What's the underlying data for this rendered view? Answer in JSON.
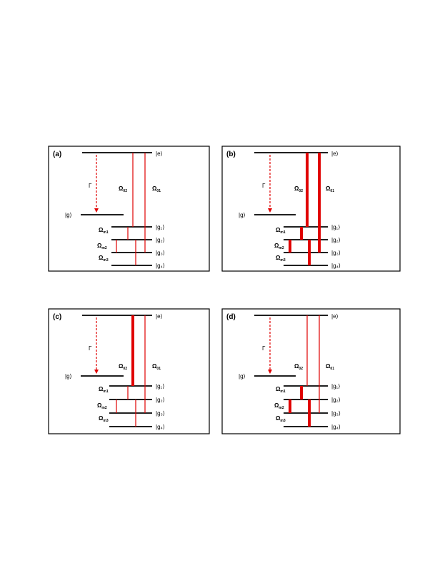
{
  "panels": [
    {
      "label": "(a)",
      "ket_e": "|e⟩",
      "ket_g": "|g⟩",
      "kets_gn": [
        "|g₁⟩",
        "|g₂⟩",
        "|g₃⟩",
        "|g₄⟩"
      ],
      "gamma": "Γ",
      "omega_main": [
        {
          "base": "Ω",
          "sub": "02"
        },
        {
          "base": "Ω",
          "sub": "01"
        }
      ],
      "omega_side": [
        {
          "base": "Ω",
          "sub": "m1"
        },
        {
          "base": "Ω",
          "sub": "m2"
        },
        {
          "base": "Ω",
          "sub": "m3"
        }
      ]
    },
    {
      "label": "(b)",
      "ket_e": "|e⟩",
      "ket_g": "|g⟩",
      "kets_gn": [
        "|g₁⟩",
        "|g₂⟩",
        "|g₃⟩",
        "|g₄⟩"
      ],
      "gamma": "Γ",
      "omega_main": [
        {
          "base": "Ω",
          "sub": "02"
        },
        {
          "base": "Ω",
          "sub": "01"
        }
      ],
      "omega_side": [
        {
          "base": "Ω",
          "sub": "m1"
        },
        {
          "base": "Ω",
          "sub": "m2"
        },
        {
          "base": "Ω",
          "sub": "m3"
        }
      ]
    },
    {
      "label": "(c)",
      "ket_e": "|e⟩",
      "ket_g": "|g⟩",
      "kets_gn": [
        "|g₁⟩",
        "|g₂⟩",
        "|g₃⟩",
        "|g₄⟩"
      ],
      "gamma": "Γ",
      "omega_main": [
        {
          "base": "Ω",
          "sub": "02"
        },
        {
          "base": "Ω",
          "sub": "01"
        }
      ],
      "omega_side": [
        {
          "base": "Ω",
          "sub": "m1"
        },
        {
          "base": "Ω",
          "sub": "m2"
        },
        {
          "base": "Ω",
          "sub": "m3"
        }
      ]
    },
    {
      "label": "(d)",
      "ket_e": "|e⟩",
      "ket_g": "|g⟩",
      "kets_gn": [
        "|g₁⟩",
        "|g₂⟩",
        "|g₃⟩",
        "|g₄⟩"
      ],
      "gamma": "Γ",
      "omega_main": [
        {
          "base": "Ω",
          "sub": "02"
        },
        {
          "base": "Ω",
          "sub": "01"
        }
      ],
      "omega_side": [
        {
          "base": "Ω",
          "sub": "m1"
        },
        {
          "base": "Ω",
          "sub": "m2"
        },
        {
          "base": "Ω",
          "sub": "m3"
        }
      ]
    }
  ],
  "colors": {
    "coupling": "#e00000",
    "levels": "#000000"
  },
  "coupling_strength": {
    "(a)": {
      "omega_02": "weak",
      "omega_01": "weak",
      "omega_m": "weak"
    },
    "(b)": {
      "omega_02": "strong",
      "omega_01": "strong",
      "omega_m": "strong"
    },
    "(c)": {
      "omega_02": "strong",
      "omega_01": "weak",
      "omega_m": "weak"
    },
    "(d)": {
      "omega_02": "weak",
      "omega_01": "weak",
      "omega_m": "strong"
    }
  }
}
